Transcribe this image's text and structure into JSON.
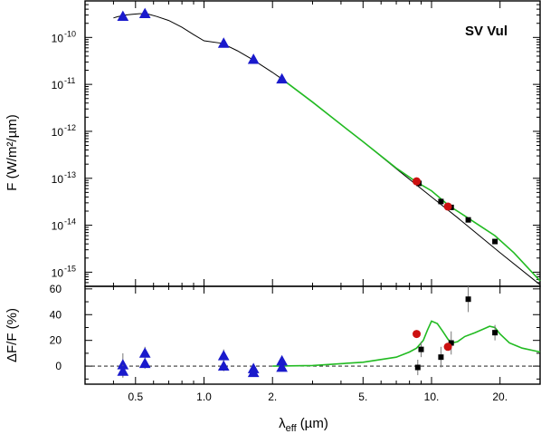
{
  "chart_data": {
    "type": "scatter",
    "title": "SV Vul",
    "xlabel_main": "λ",
    "xlabel_sub": "eff",
    "xlabel_unit": "(µm)",
    "x_scale": "log",
    "xlim": [
      0.3,
      30
    ],
    "x_ticks": [
      {
        "value": 0.5,
        "label": "0.5"
      },
      {
        "value": 1.0,
        "label": "1.0"
      },
      {
        "value": 2.0,
        "label": "2."
      },
      {
        "value": 5.0,
        "label": "5."
      },
      {
        "value": 10.0,
        "label": "10."
      },
      {
        "value": 20.0,
        "label": "20."
      }
    ],
    "top_panel": {
      "ylabel": "F (W/m²/µm)",
      "y_scale": "log",
      "ylim": [
        5e-16,
        6e-10
      ],
      "y_ticks": [
        {
          "exp": -10,
          "label": "10",
          "sup": "-10"
        },
        {
          "exp": -11,
          "label": "10",
          "sup": "-11"
        },
        {
          "exp": -12,
          "label": "10",
          "sup": "-12"
        },
        {
          "exp": -13,
          "label": "10",
          "sup": "-13"
        },
        {
          "exp": -14,
          "label": "10",
          "sup": "-14"
        },
        {
          "exp": -15,
          "label": "10",
          "sup": "-15"
        }
      ],
      "photosphere_model": {
        "color": "#000000",
        "x": [
          0.4,
          0.42,
          0.45,
          0.48,
          0.52,
          0.56,
          0.62,
          0.7,
          0.8,
          0.9,
          1.0,
          1.2,
          1.4,
          1.65,
          2.0,
          2.2,
          3.0,
          4.0,
          5.0,
          7.0,
          10.0,
          13.0,
          20.0,
          30.0
        ],
        "y": [
          2.6e-10,
          2.8e-10,
          3e-10,
          3.1e-10,
          3.2e-10,
          3.2e-10,
          2.8e-10,
          2.3e-10,
          1.65e-10,
          1.15e-10,
          8.5e-11,
          7.5e-11,
          5.2e-11,
          3.3e-11,
          1.8e-11,
          1.3e-11,
          4.2e-12,
          1.4e-12,
          6e-13,
          1.6e-13,
          4e-14,
          1.45e-14,
          2.6e-15,
          5.4e-16
        ]
      },
      "dust_model": {
        "color": "#22bb22",
        "x": [
          2.2,
          3.0,
          4.0,
          5.0,
          7.0,
          8.5,
          10.0,
          12.0,
          14.0,
          17.0,
          19.0,
          23.0,
          30.0
        ],
        "y": [
          1.3e-11,
          4.2e-12,
          1.4e-12,
          6e-13,
          1.65e-13,
          8.6e-14,
          5.4e-14,
          2.55e-14,
          1.58e-14,
          8.5e-15,
          6e-15,
          2.6e-15,
          6.5e-16
        ]
      },
      "photometry_triangles": {
        "color": "#1a1acc",
        "x": [
          0.44,
          0.55,
          1.22,
          1.65,
          2.2
        ],
        "y": [
          2.8e-10,
          3.2e-10,
          7.5e-11,
          3.4e-11,
          1.3e-11
        ]
      },
      "ir_squares": {
        "color": "#000000",
        "x": [
          8.8,
          11.0,
          12.2,
          14.5,
          19.0
        ],
        "y": [
          7.8e-14,
          3.2e-14,
          2.4e-14,
          1.3e-14,
          4.5e-15
        ]
      },
      "ir_circles": {
        "color": "#cc1111",
        "x": [
          8.6,
          11.8
        ],
        "y": [
          8.6e-14,
          2.5e-14
        ]
      }
    },
    "bottom_panel": {
      "ylabel": "ΔF/F (%)",
      "ylim": [
        -14,
        62
      ],
      "y_ticks": [
        0,
        20,
        40,
        60
      ],
      "zero_line": "dashed",
      "excess_model": {
        "color": "#22bb22",
        "x": [
          2.0,
          3.0,
          5.0,
          7.0,
          8.0,
          8.6,
          9.2,
          9.6,
          10.0,
          10.6,
          11.2,
          11.8,
          12.3,
          13.0,
          14.0,
          15.5,
          17.0,
          18.0,
          19.0,
          20.0,
          22.0,
          25.0,
          30.0
        ],
        "y": [
          0,
          0.5,
          3,
          7,
          11,
          14,
          20,
          28,
          35,
          33,
          27,
          21,
          18,
          19,
          23,
          26,
          29,
          31,
          30,
          25,
          18,
          14,
          11
        ]
      },
      "triangles": {
        "color": "#1a1acc",
        "points": [
          {
            "x": 0.44,
            "y": 1,
            "err": 9
          },
          {
            "x": 0.44,
            "y": -4,
            "err": 5
          },
          {
            "x": 0.55,
            "y": 10,
            "err": 5
          },
          {
            "x": 0.55,
            "y": 2,
            "err": 4
          },
          {
            "x": 1.22,
            "y": 8,
            "err": 5
          },
          {
            "x": 1.22,
            "y": 0,
            "err": 4
          },
          {
            "x": 1.65,
            "y": -2,
            "err": 3
          },
          {
            "x": 1.65,
            "y": -5,
            "err": 3
          },
          {
            "x": 2.2,
            "y": 4,
            "err": 4
          },
          {
            "x": 2.2,
            "y": -1,
            "err": 3
          }
        ]
      },
      "squares": {
        "color": "#000000",
        "points": [
          {
            "x": 8.7,
            "y": -1,
            "err": 6
          },
          {
            "x": 9.0,
            "y": 13,
            "err": 6
          },
          {
            "x": 11.0,
            "y": 7,
            "err": 8
          },
          {
            "x": 12.2,
            "y": 18,
            "err": 9
          },
          {
            "x": 14.5,
            "y": 52,
            "err": 10
          },
          {
            "x": 19.0,
            "y": 26,
            "err": 6
          }
        ]
      },
      "circles": {
        "color": "#cc1111",
        "points": [
          {
            "x": 8.6,
            "y": 25
          },
          {
            "x": 11.8,
            "y": 15
          }
        ]
      }
    }
  }
}
